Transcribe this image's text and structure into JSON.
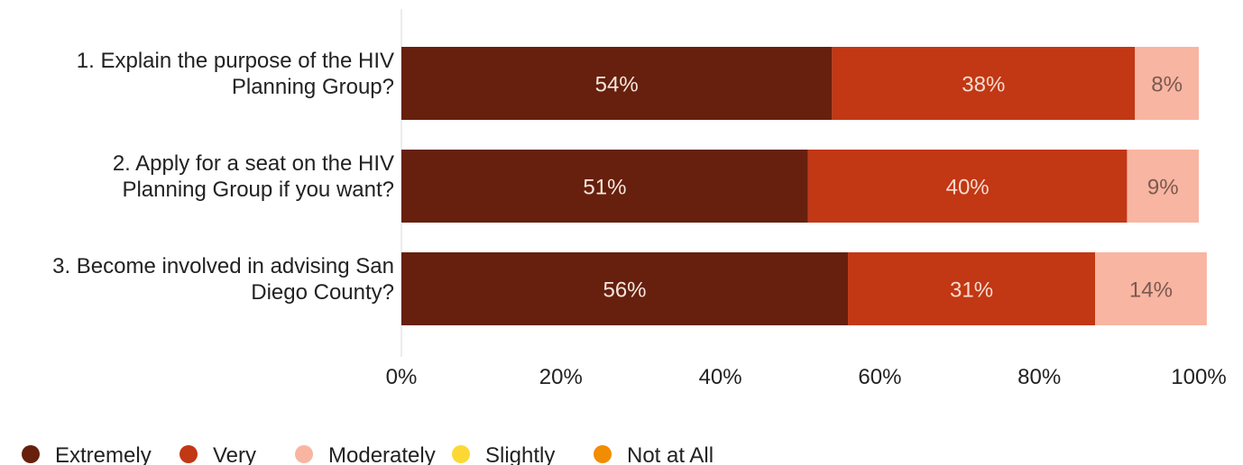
{
  "chart_data": {
    "type": "bar",
    "orientation": "horizontal",
    "stacked": true,
    "categories": [
      [
        "1. Explain the purpose of the HIV",
        "Planning Group?"
      ],
      [
        "2. Apply for a seat on the HIV",
        "Planning Group if you want?"
      ],
      [
        "3. Become involved in advising San",
        "Diego County?"
      ]
    ],
    "series": [
      {
        "name": "Extremely",
        "color": "#66200d",
        "label_color": "#f5e6df",
        "values": [
          54,
          51,
          56
        ],
        "labels": [
          "54%",
          "51%",
          "56%"
        ]
      },
      {
        "name": "Very",
        "color": "#c23714",
        "label_color": "#f7dccf",
        "values": [
          38,
          40,
          31
        ],
        "labels": [
          "38%",
          "40%",
          "31%"
        ]
      },
      {
        "name": "Moderately",
        "color": "#f8b5a2",
        "label_color": "#7a5a50",
        "values": [
          8,
          9,
          14
        ],
        "labels": [
          "8%",
          "9%",
          "14%"
        ]
      },
      {
        "name": "Slightly",
        "color": "#fdd835",
        "label_color": "#333333",
        "values": [
          0,
          0,
          0
        ],
        "labels": [
          "",
          "",
          ""
        ]
      },
      {
        "name": "Not at All",
        "color": "#f28c00",
        "label_color": "#333333",
        "values": [
          0,
          0,
          0
        ],
        "labels": [
          "",
          "",
          ""
        ]
      }
    ],
    "xlim": [
      0,
      100
    ],
    "xticks": [
      {
        "value": 0,
        "label": "0%"
      },
      {
        "value": 20,
        "label": "20%"
      },
      {
        "value": 40,
        "label": "40%"
      },
      {
        "value": 60,
        "label": "60%"
      },
      {
        "value": 80,
        "label": "80%"
      },
      {
        "value": 100,
        "label": "100%"
      }
    ],
    "grid": false,
    "legend_position": "bottom-left"
  }
}
